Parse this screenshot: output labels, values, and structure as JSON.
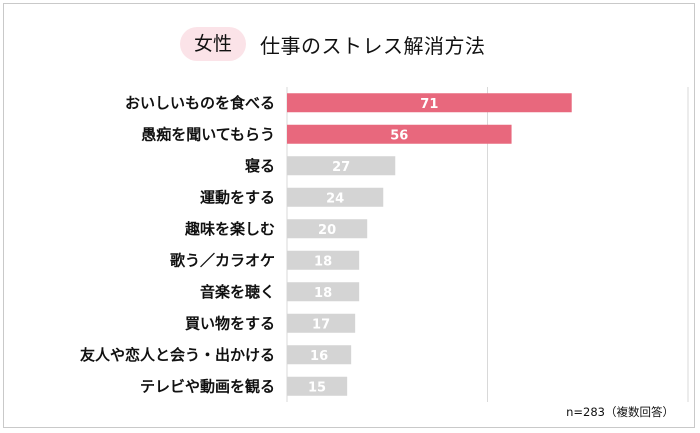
{
  "header": {
    "badge": "女性",
    "title": "仕事のストレス解消方法"
  },
  "note": "n=283（複数回答）",
  "colors": {
    "highlight": "#e8687d",
    "normal": "#d4d4d4",
    "grid": "#d9d9d9"
  },
  "chart_data": {
    "type": "bar",
    "orientation": "horizontal",
    "title": "仕事のストレス解消方法",
    "xlim": [
      0,
      100
    ],
    "gridlines": [
      0,
      50,
      100
    ],
    "categories": [
      "おいしいものを食べる",
      "愚痴を聞いてもらう",
      "寝る",
      "運動をする",
      "趣味を楽しむ",
      "歌う／カラオケ",
      "音楽を聴く",
      "買い物をする",
      "友人や恋人と会う・出かける",
      "テレビや動画を観る"
    ],
    "values": [
      71,
      56,
      27,
      24,
      20,
      18,
      18,
      17,
      16,
      15
    ],
    "highlighted": [
      true,
      true,
      false,
      false,
      false,
      false,
      false,
      false,
      false,
      false
    ]
  }
}
